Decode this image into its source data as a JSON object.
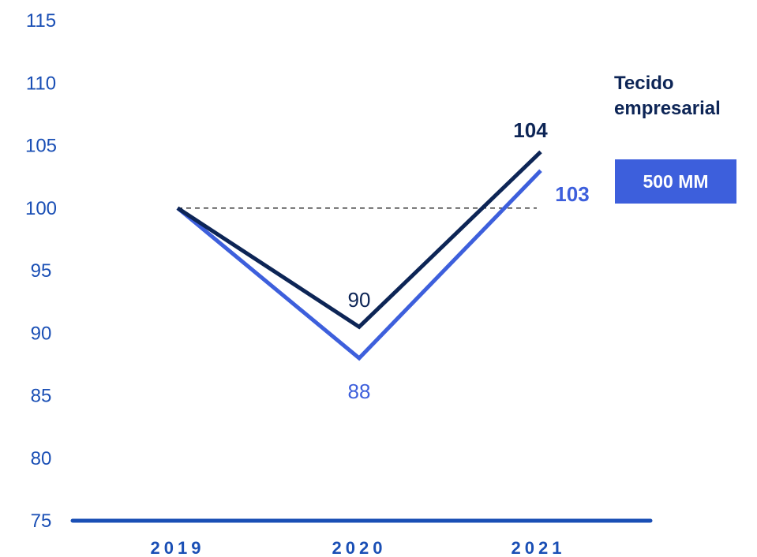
{
  "chart_data": {
    "type": "line",
    "categories": [
      "2019",
      "2020",
      "2021"
    ],
    "series": [
      {
        "values": [
          100,
          90.5,
          104.5
        ],
        "color": "#0d2556",
        "labels": [
          null,
          "90",
          "104"
        ],
        "label_bold": [
          false,
          false,
          true
        ]
      },
      {
        "values": [
          100,
          88,
          103
        ],
        "color": "#3d5fdc",
        "labels": [
          null,
          "88",
          "103"
        ],
        "label_bold": [
          false,
          false,
          true
        ]
      }
    ],
    "reference_line": {
      "value": 100,
      "style": "dashed",
      "color": "#333333"
    },
    "yticks": [
      "75",
      "80",
      "85",
      "90",
      "95",
      "100",
      "105",
      "110",
      "115"
    ],
    "ylim": [
      75,
      115
    ],
    "grid": false,
    "axis_color": "#1a4fb5",
    "legend_placement": "right",
    "title": "",
    "xlabel": "",
    "ylabel": ""
  },
  "legend": {
    "title_lines": [
      "Tecido",
      "empresarial"
    ],
    "badge": "500 MM",
    "badge_color": "#3d5fdc"
  }
}
